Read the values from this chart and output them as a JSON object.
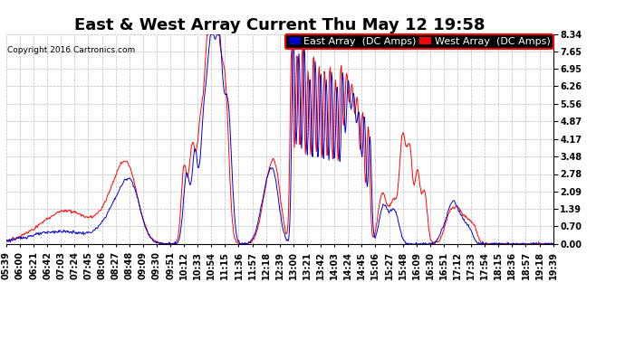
{
  "title": "East & West Array Current Thu May 12 19:58",
  "copyright": "Copyright 2016 Cartronics.com",
  "east_label": "East Array  (DC Amps)",
  "west_label": "West Array  (DC Amps)",
  "east_color": "#0000cc",
  "west_color": "#ff0000",
  "background_color": "#ffffff",
  "grid_color": "#bbbbbb",
  "yticks": [
    0.0,
    0.7,
    1.39,
    2.09,
    2.78,
    3.48,
    4.17,
    4.87,
    5.56,
    6.26,
    6.95,
    7.65,
    8.34
  ],
  "ylim": [
    0.0,
    8.34
  ],
  "xtick_labels": [
    "05:39",
    "06:00",
    "06:21",
    "06:42",
    "07:03",
    "07:24",
    "07:45",
    "08:06",
    "08:27",
    "08:48",
    "09:09",
    "09:30",
    "09:51",
    "10:12",
    "10:33",
    "10:54",
    "11:15",
    "11:36",
    "11:57",
    "12:18",
    "12:39",
    "13:00",
    "13:21",
    "13:42",
    "14:03",
    "14:24",
    "14:45",
    "15:06",
    "15:27",
    "15:48",
    "16:09",
    "16:30",
    "16:51",
    "17:12",
    "17:33",
    "17:54",
    "18:15",
    "18:36",
    "18:57",
    "19:18",
    "19:39"
  ],
  "title_fontsize": 13,
  "tick_fontsize": 7,
  "legend_fontsize": 8
}
